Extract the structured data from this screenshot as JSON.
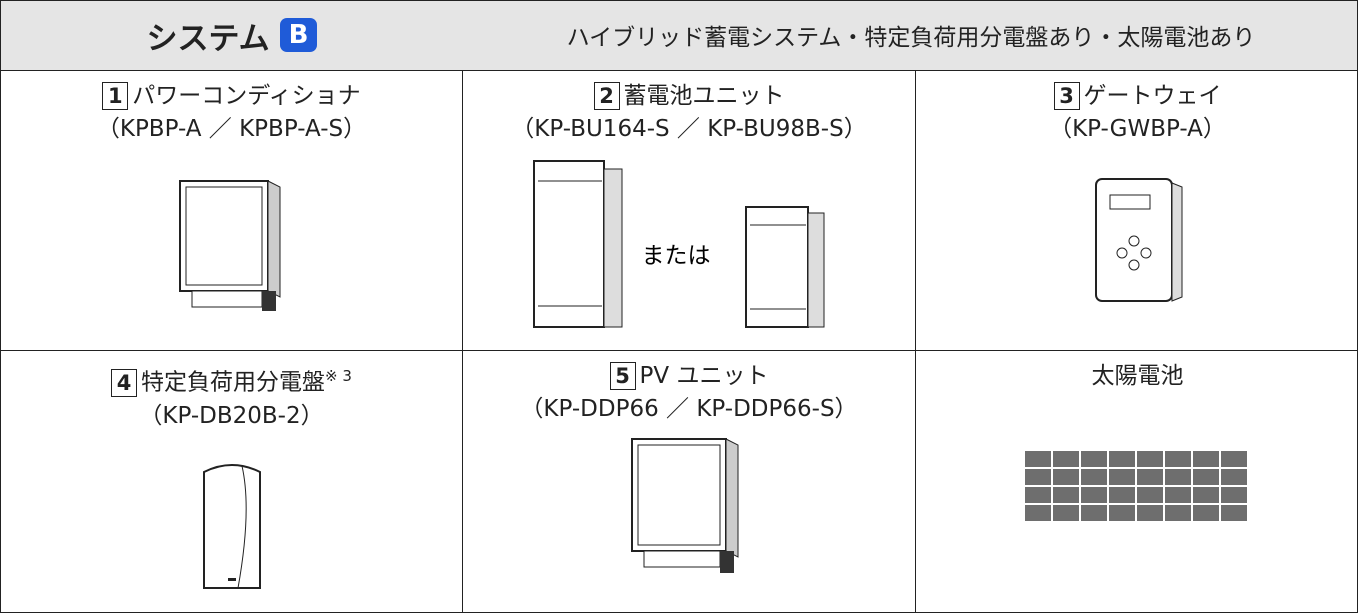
{
  "header": {
    "title": "システム",
    "badge": "B",
    "description": "ハイブリッド蓄電システム・特定負荷用分電盤あり・太陽電池あり"
  },
  "cells": [
    {
      "number": "1",
      "name": "パワーコンディショナ",
      "model": "（KPBP-A ／ KPBP-A-S）"
    },
    {
      "number": "2",
      "name": "蓄電池ユニット",
      "model": "（KP-BU164-S ／ KP-BU98B-S）",
      "or_text": "または"
    },
    {
      "number": "3",
      "name": "ゲートウェイ",
      "model": "（KP-GWBP-A）"
    },
    {
      "number": "4",
      "name": "特定負荷用分電盤",
      "note": "※ 3",
      "model": "（KP-DB20B-2）"
    },
    {
      "number": "5",
      "name": "PV ユニット",
      "model": "（KP-DDP66 ／ KP-DDP66-S）"
    },
    {
      "name": "太陽電池"
    }
  ]
}
